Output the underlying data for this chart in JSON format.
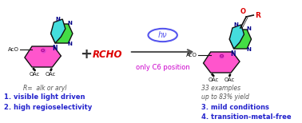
{
  "bg_color": "#ffffff",
  "arrow_color": "#555555",
  "circle_color": "#5555ee",
  "hv_text": "hν",
  "hv_color": "#5555ee",
  "condition_text": "only C6 position",
  "condition_color": "#cc00cc",
  "plus_color": "#333333",
  "rcho_color": "#dd0000",
  "rcho_text": "RCHO",
  "r_label_text": "R=  alk or aryl",
  "bullet1_text": "1. visible light driven",
  "bullet2_text": "2. high regioselectivity",
  "bullet3_text": "3. mild conditions",
  "bullet4_text": "4. transition-metal-free",
  "blue_text_color": "#2222cc",
  "examples_text": "33 examples",
  "yield_text": "up to 83% yield",
  "gray_text_color": "#555555",
  "acyl_o_color": "#dd0000",
  "acyl_r_color": "#dd0000",
  "purine_green": "#44dd44",
  "purine_cyan": "#44dddd",
  "sugar_pink": "#ff55cc",
  "sugar_dark": "#111111",
  "oac_color": "#111111",
  "n_color": "#000088",
  "fig_width": 3.78,
  "fig_height": 1.54,
  "dpi": 100
}
